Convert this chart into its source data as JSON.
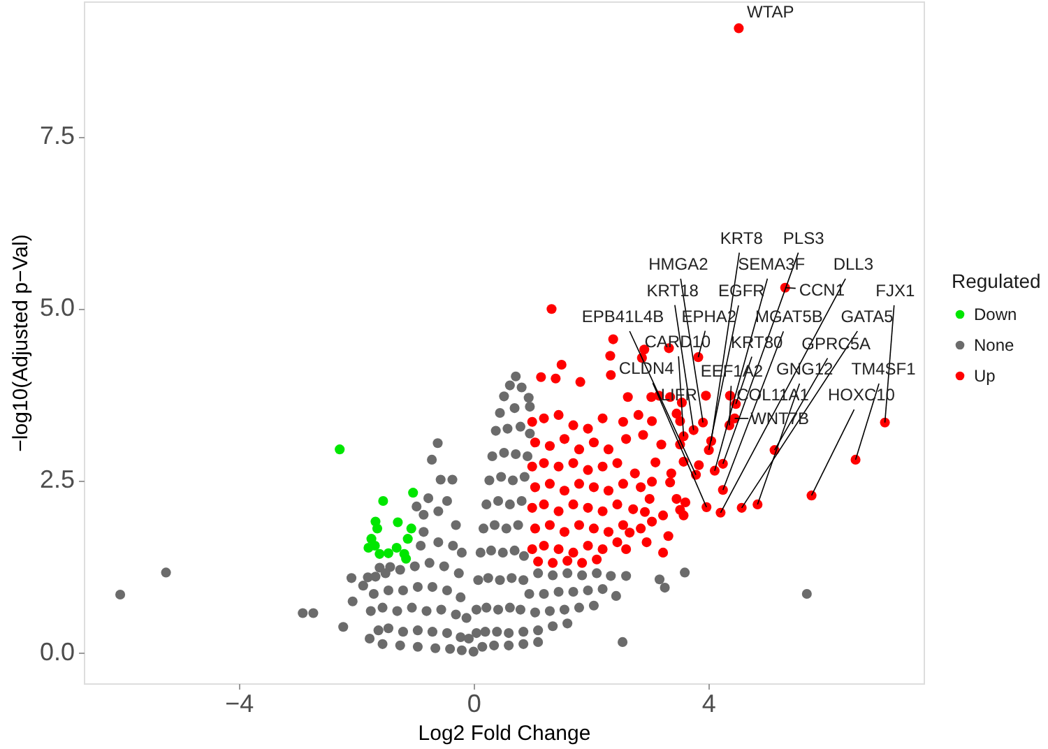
{
  "chart_data": {
    "type": "scatter",
    "xlabel": "Log2 Fold Change",
    "ylabel": "−log10(Adjusted p−Val)",
    "legend_title": "Regulated",
    "legend": "right",
    "marker": "circle",
    "xlim": [
      -6.64,
      7.67
    ],
    "ylim": [
      -0.45,
      9.46
    ],
    "xticks": [
      -4,
      0,
      4
    ],
    "yticks": [
      {
        "value": 0,
        "label": "0.0"
      },
      2.5,
      {
        "value": 5,
        "label": "5.0"
      },
      7.5
    ],
    "series": [
      {
        "name": "Down",
        "color": "#00e600",
        "x": [
          -2.28,
          -1.54,
          -1.03,
          -1.67,
          -1.64,
          -1.29,
          -1.06,
          -1.74,
          -1.12,
          -1.68,
          -1.79,
          -1.31,
          -1.6,
          -1.45,
          -1.18,
          -1.15
        ],
        "values": [
          2.95,
          2.2,
          2.32,
          1.9,
          1.8,
          1.89,
          1.8,
          1.65,
          1.65,
          1.55,
          1.52,
          1.52,
          1.43,
          1.44,
          1.43,
          1.36
        ]
      },
      {
        "name": "None",
        "color": "#6b6b6b",
        "x": [
          -6.02,
          -5.24,
          -2.91,
          -2.73,
          -2.22,
          -2.08,
          -2.06,
          -1.88,
          -1.77,
          5.68,
          2.54,
          3.6,
          3.17,
          3.26,
          -0.61,
          -0.71,
          -0.56,
          -0.36,
          -1.8,
          -1.67,
          -1.6,
          -1.42,
          -0.97,
          -0.77,
          -0.45,
          -0.85,
          -0.6,
          -0.3,
          -0.85,
          -0.9,
          -0.6,
          -0.35,
          -0.2,
          -1.5,
          -1.25,
          -1.0,
          -0.75,
          -0.5,
          -0.25,
          -1.7,
          -1.45,
          -1.2,
          -0.95,
          -0.7,
          -0.45,
          -0.22,
          -1.75,
          -1.55,
          -1.3,
          -1.05,
          -0.8,
          -0.55,
          -0.3,
          -0.12,
          -1.62,
          -1.45,
          -1.2,
          -0.95,
          -0.7,
          -0.45,
          -0.22,
          -0.08,
          -1.55,
          -1.25,
          -0.95,
          -0.65,
          -0.4,
          -0.2,
          0.0,
          0.72,
          0.62,
          0.82,
          0.52,
          0.94,
          0.96,
          0.45,
          0.7,
          0.38,
          0.58,
          0.8,
          0.96,
          0.32,
          0.52,
          0.72,
          0.92,
          0.27,
          0.47,
          0.67,
          0.87,
          0.22,
          0.42,
          0.62,
          0.82,
          0.17,
          0.36,
          0.56,
          0.76,
          0.12,
          0.3,
          0.5,
          0.7,
          0.86,
          1.1,
          1.35,
          1.6,
          1.85,
          2.1,
          2.34,
          2.6,
          0.08,
          0.25,
          0.45,
          0.65,
          0.85,
          0.95,
          1.2,
          1.45,
          1.7,
          1.95,
          2.2,
          2.43,
          0.05,
          0.22,
          0.42,
          0.62,
          0.8,
          1.05,
          1.3,
          1.55,
          1.8,
          2.05,
          0.05,
          0.2,
          0.4,
          0.6,
          0.85,
          1.1,
          1.35,
          1.6,
          0.15,
          0.35,
          0.6,
          0.85,
          1.1
        ],
        "values": [
          0.84,
          1.16,
          0.57,
          0.57,
          0.37,
          1.08,
          0.74,
          0.97,
          0.2,
          0.85,
          0.15,
          1.16,
          1.06,
          0.94,
          3.04,
          2.8,
          2.51,
          2.51,
          1.09,
          1.1,
          1.23,
          1.24,
          2.12,
          2.24,
          2.2,
          2.0,
          2.05,
          1.85,
          1.75,
          1.55,
          1.6,
          1.55,
          1.45,
          1.15,
          1.2,
          1.25,
          1.3,
          1.25,
          1.15,
          0.85,
          0.9,
          0.9,
          0.95,
          0.95,
          0.9,
          0.8,
          0.6,
          0.65,
          0.6,
          0.65,
          0.6,
          0.62,
          0.55,
          0.5,
          0.32,
          0.35,
          0.3,
          0.32,
          0.3,
          0.28,
          0.22,
          0.2,
          0.12,
          0.1,
          0.08,
          0.06,
          0.05,
          0.03,
          0.01,
          4.01,
          3.88,
          3.85,
          3.72,
          3.7,
          3.57,
          3.48,
          3.55,
          3.22,
          3.25,
          3.28,
          3.18,
          2.85,
          2.9,
          2.88,
          2.85,
          2.5,
          2.55,
          2.5,
          2.55,
          2.15,
          2.2,
          2.15,
          2.2,
          1.8,
          1.85,
          1.8,
          1.85,
          1.45,
          1.48,
          1.45,
          1.48,
          1.4,
          1.15,
          1.12,
          1.15,
          1.12,
          1.15,
          1.11,
          1.11,
          1.05,
          1.08,
          1.05,
          1.08,
          1.05,
          0.85,
          0.85,
          0.88,
          0.88,
          0.9,
          0.92,
          0.82,
          0.62,
          0.65,
          0.62,
          0.65,
          0.62,
          0.58,
          0.6,
          0.62,
          0.65,
          0.68,
          0.28,
          0.3,
          0.3,
          0.28,
          0.3,
          0.32,
          0.38,
          0.42,
          0.08,
          0.1,
          0.1,
          0.12,
          0.15
        ]
      },
      {
        "name": "Up",
        "color": "#ff0000",
        "x": [
          4.52,
          5.31,
          7.01,
          6.51,
          5.76,
          3.83,
          3.96,
          4.37,
          4.47,
          4.45,
          4.36,
          3.91,
          3.75,
          3.58,
          4.05,
          4.01,
          5.13,
          4.25,
          4.11,
          3.79,
          4.25,
          3.97,
          4.21,
          4.57,
          4.84,
          1.0,
          1.2,
          1.45,
          1.7,
          1.95,
          2.2,
          1.05,
          1.3,
          1.55,
          1.8,
          2.05,
          2.3,
          2.6,
          1.0,
          1.2,
          1.45,
          1.7,
          1.95,
          2.2,
          2.45,
          2.75,
          1.05,
          1.3,
          1.55,
          1.8,
          2.05,
          2.3,
          2.55,
          2.85,
          1.0,
          1.2,
          1.45,
          1.7,
          1.95,
          2.2,
          2.45,
          1.05,
          1.3,
          1.55,
          1.8,
          2.05,
          2.3,
          2.55,
          1.0,
          1.2,
          1.45,
          1.7,
          1.95,
          2.2,
          2.45,
          1.1,
          1.35,
          1.6,
          1.85,
          2.1,
          1.33,
          1.15,
          1.5,
          1.4,
          1.82,
          2.38,
          2.33,
          2.34,
          2.91,
          2.87,
          3.33,
          3.03,
          3.35,
          3.46,
          2.63,
          2.81,
          2.55,
          2.89,
          3.1,
          3.37,
          3.58,
          3.84,
          3.35,
          3.61,
          3.46,
          3.0,
          2.72,
          3.23,
          3.58,
          3.32,
          2.95,
          3.23,
          2.66,
          2.85,
          2.6,
          3.16,
          3.55,
          3.52,
          3.04,
          3.2,
          3.52,
          3.04,
          2.92,
          3.52,
          3.04
        ],
        "values": [
          9.07,
          5.3,
          3.34,
          2.8,
          2.28,
          4.29,
          3.73,
          3.73,
          3.61,
          3.4,
          3.3,
          3.34,
          3.23,
          3.14,
          3.07,
          2.94,
          2.94,
          2.74,
          2.64,
          2.58,
          2.36,
          2.11,
          2.03,
          2.1,
          2.15,
          3.35,
          3.4,
          3.45,
          3.3,
          3.25,
          3.4,
          3.05,
          3.0,
          3.1,
          2.95,
          3.05,
          2.95,
          3.1,
          2.7,
          2.75,
          2.7,
          2.75,
          2.65,
          2.7,
          2.75,
          2.6,
          2.4,
          2.45,
          2.35,
          2.45,
          2.4,
          2.35,
          2.45,
          2.4,
          2.1,
          2.15,
          2.05,
          2.15,
          2.1,
          2.05,
          2.15,
          1.8,
          1.85,
          1.75,
          1.85,
          1.8,
          1.75,
          1.85,
          1.5,
          1.55,
          1.5,
          1.45,
          1.55,
          1.5,
          1.6,
          1.32,
          1.3,
          1.33,
          1.3,
          1.35,
          4.99,
          4.0,
          4.18,
          3.98,
          3.93,
          4.55,
          4.31,
          4.03,
          4.4,
          4.28,
          4.42,
          3.71,
          3.71,
          3.47,
          3.71,
          3.45,
          3.35,
          3.16,
          2.76,
          2.6,
          2.77,
          2.72,
          2.47,
          2.18,
          2.23,
          2.23,
          2.08,
          1.99,
          1.99,
          1.69,
          1.6,
          1.45,
          1.74,
          1.8,
          1.5,
          3.73,
          3.63,
          3.36,
          3.36,
          3.02,
          3.02,
          2.48,
          2.04,
          2.07,
          1.9
        ]
      }
    ],
    "annotations": [
      {
        "text": "WTAP",
        "x": 4.52,
        "y": 9.07
      },
      {
        "text": "CCN1",
        "x": 5.31,
        "y": 5.3
      },
      {
        "text": "FJX1",
        "x": 7.01,
        "y": 3.34
      },
      {
        "text": "TM4SF1",
        "x": 6.51,
        "y": 2.8
      },
      {
        "text": "HOXC10",
        "x": 5.76,
        "y": 2.28
      },
      {
        "text": "EPHA2",
        "x": 3.83,
        "y": 4.29
      },
      {
        "text": "LIFR",
        "x": 3.96,
        "y": 3.73
      },
      {
        "text": "COL11A1",
        "x": 4.37,
        "y": 3.73
      },
      {
        "text": "KRT80",
        "x": 4.47,
        "y": 3.61
      },
      {
        "text": "WNT7B",
        "x": 4.45,
        "y": 3.4
      },
      {
        "text": "EEF1A2",
        "x": 4.36,
        "y": 3.3
      },
      {
        "text": "HMGA2",
        "x": 3.91,
        "y": 3.34
      },
      {
        "text": "KRT18",
        "x": 3.75,
        "y": 3.23
      },
      {
        "text": "CARD10",
        "x": 3.58,
        "y": 3.14
      },
      {
        "text": "KRT8",
        "x": 4.05,
        "y": 3.07
      },
      {
        "text": "EGFR",
        "x": 4.01,
        "y": 2.94
      },
      {
        "text": "GPRC5A",
        "x": 5.13,
        "y": 2.94
      },
      {
        "text": "PLS3",
        "x": 4.25,
        "y": 2.74
      },
      {
        "text": "SEMA3F",
        "x": 4.11,
        "y": 2.64
      },
      {
        "text": "EPB41L4B",
        "x": 3.79,
        "y": 2.58
      },
      {
        "text": "MGAT5B",
        "x": 4.25,
        "y": 2.36
      },
      {
        "text": "CLDN4",
        "x": 3.97,
        "y": 2.11
      },
      {
        "text": "DLL3",
        "x": 4.21,
        "y": 2.03
      },
      {
        "text": "GATA5",
        "x": 4.57,
        "y": 2.1
      },
      {
        "text": "GNG12",
        "x": 4.84,
        "y": 2.15
      }
    ]
  }
}
